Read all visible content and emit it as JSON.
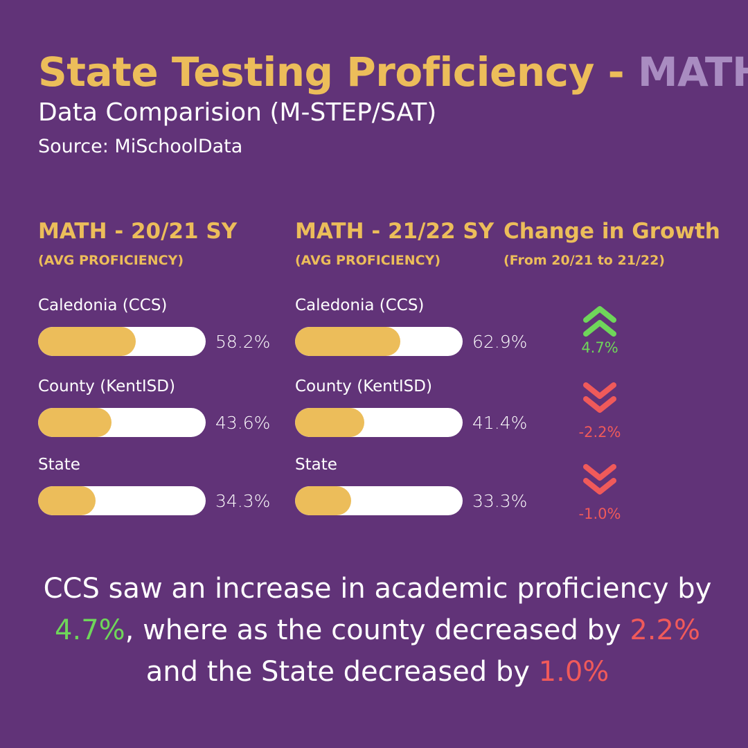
{
  "header": {
    "title_main": "State Testing Proficiency - ",
    "title_accent": "MATH",
    "subtitle": "Data Comparision (M-STEP/SAT)",
    "source": "Source: MiSchoolData"
  },
  "columns": {
    "sy2021_title": "MATH - 20/21 SY",
    "sy2021_sub": "(AVG PROFICIENCY)",
    "sy2122_title": "MATH - 21/22 SY",
    "sy2122_sub": "(AVG PROFICIENCY)",
    "change_title": "Change in Growth",
    "change_sub": "(From 20/21 to 21/22)"
  },
  "colors": {
    "background": "#613378",
    "gold": "#ecbd5a",
    "lavender": "#a98cc1",
    "up": "#6fd65a",
    "down": "#f05a5a"
  },
  "chart_data": {
    "type": "bar",
    "categories": [
      "Caledonia (CCS)",
      "County (KentISD)",
      "State"
    ],
    "series": [
      {
        "name": "MATH - 20/21 SY",
        "values": [
          58.2,
          43.6,
          34.3
        ],
        "labels": [
          "58.2%",
          "43.6%",
          "34.3%"
        ]
      },
      {
        "name": "MATH - 21/22 SY",
        "values": [
          62.9,
          41.4,
          33.3
        ],
        "labels": [
          "62.9%",
          "41.4%",
          "33.3%"
        ]
      }
    ],
    "change": {
      "values": [
        4.7,
        -2.2,
        -1.0
      ],
      "labels": [
        "4.7%",
        "-2.2%",
        "-1.0%"
      ],
      "icons": [
        "double-chevron-up-icon",
        "double-chevron-down-icon",
        "double-chevron-down-icon"
      ]
    },
    "ylim": [
      0,
      100
    ]
  },
  "summary": {
    "line1": "CCS saw an increase in academic proficiency by",
    "ccs_change": "4.7%",
    "line2": ", where as the county decreased by ",
    "county_change": "2.2%",
    "line3": "and the State decreased by ",
    "state_change": "1.0%"
  }
}
